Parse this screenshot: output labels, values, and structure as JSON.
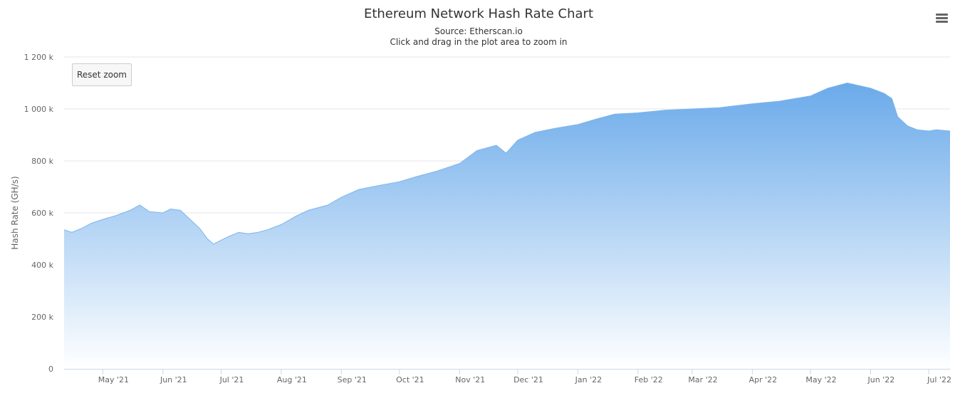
{
  "header": {
    "title": "Ethereum Network Hash Rate Chart",
    "source": "Source: Etherscan.io",
    "hint": "Click and drag in the plot area to zoom in"
  },
  "controls": {
    "reset_zoom_label": "Reset zoom",
    "menu_icon": "hamburger-menu-icon"
  },
  "colors": {
    "series": "#7cb5ec",
    "series_fill_top": "#6aaaea",
    "series_fill_bottom": "#ffffff",
    "gridline": "#e6e6e6",
    "text": "#333333",
    "axis_text": "#666666"
  },
  "chart_data": {
    "type": "area",
    "title": "Ethereum Network Hash Rate Chart",
    "subtitle": "Source: Etherscan.io",
    "xlabel": "",
    "ylabel": "Hash Rate (GH/s)",
    "ylim": [
      0,
      1200000
    ],
    "y_ticks": [
      0,
      200000,
      400000,
      600000,
      800000,
      1000000,
      1200000
    ],
    "y_tick_labels": [
      "0",
      "200 k",
      "400 k",
      "600 k",
      "800 k",
      "1 000 k",
      "1 200 k"
    ],
    "x_range": [
      "2021-04-11",
      "2022-07-12"
    ],
    "x_ticks": [
      "2021-05-01",
      "2021-06-01",
      "2021-07-01",
      "2021-08-01",
      "2021-09-01",
      "2021-10-01",
      "2021-11-01",
      "2021-12-01",
      "2022-01-01",
      "2022-02-01",
      "2022-03-01",
      "2022-04-01",
      "2022-05-01",
      "2022-06-01",
      "2022-07-01"
    ],
    "x_tick_labels": [
      "May '21",
      "Jun '21",
      "Jul '21",
      "Aug '21",
      "Sep '21",
      "Oct '21",
      "Nov '21",
      "Dec '21",
      "Jan '22",
      "Feb '22",
      "Mar '22",
      "Apr '22",
      "May '22",
      "Jun '22",
      "Jul '22"
    ],
    "grid": true,
    "legend": "none",
    "series": [
      {
        "x": [
          "2021-04-11",
          "2021-04-15",
          "2021-04-20",
          "2021-04-25",
          "2021-05-01",
          "2021-05-08",
          "2021-05-15",
          "2021-05-20",
          "2021-05-25",
          "2021-06-01",
          "2021-06-05",
          "2021-06-10",
          "2021-06-15",
          "2021-06-20",
          "2021-06-24",
          "2021-06-27",
          "2021-07-01",
          "2021-07-05",
          "2021-07-10",
          "2021-07-15",
          "2021-07-20",
          "2021-07-25",
          "2021-08-01",
          "2021-08-08",
          "2021-08-15",
          "2021-08-25",
          "2021-09-01",
          "2021-09-10",
          "2021-09-20",
          "2021-10-01",
          "2021-10-10",
          "2021-10-20",
          "2021-11-01",
          "2021-11-10",
          "2021-11-20",
          "2021-11-25",
          "2021-12-01",
          "2021-12-10",
          "2021-12-20",
          "2022-01-01",
          "2022-01-10",
          "2022-01-20",
          "2022-02-01",
          "2022-02-15",
          "2022-03-01",
          "2022-03-15",
          "2022-04-01",
          "2022-04-15",
          "2022-05-01",
          "2022-05-10",
          "2022-05-20",
          "2022-06-01",
          "2022-06-08",
          "2022-06-12",
          "2022-06-15",
          "2022-06-20",
          "2022-06-25",
          "2022-07-01",
          "2022-07-05",
          "2022-07-12"
        ],
        "y": [
          535000,
          525000,
          540000,
          560000,
          575000,
          590000,
          610000,
          630000,
          605000,
          600000,
          615000,
          610000,
          575000,
          540000,
          500000,
          480000,
          495000,
          510000,
          525000,
          520000,
          525000,
          535000,
          555000,
          585000,
          610000,
          630000,
          660000,
          690000,
          705000,
          720000,
          740000,
          760000,
          790000,
          840000,
          860000,
          830000,
          880000,
          910000,
          925000,
          940000,
          960000,
          980000,
          985000,
          995000,
          1000000,
          1005000,
          1020000,
          1030000,
          1050000,
          1080000,
          1100000,
          1080000,
          1060000,
          1040000,
          970000,
          935000,
          920000,
          915000,
          920000,
          915000
        ]
      }
    ]
  }
}
